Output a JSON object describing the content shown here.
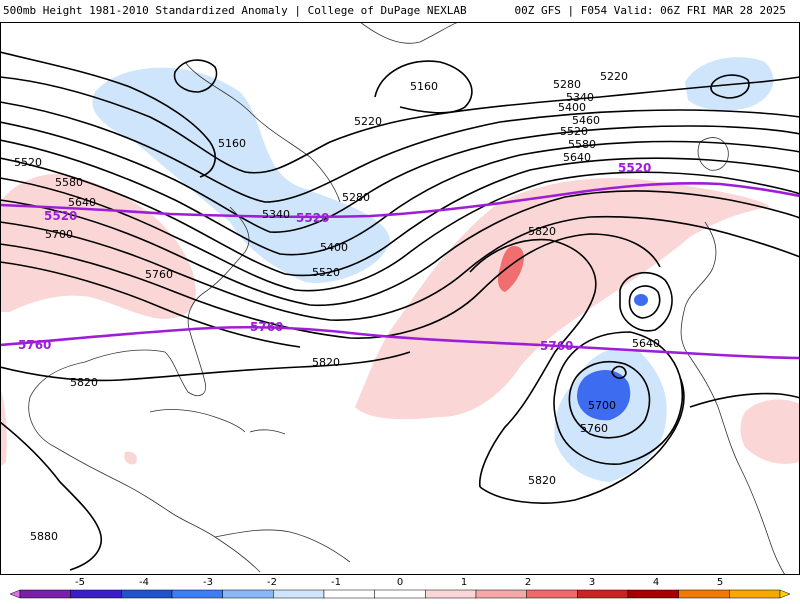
{
  "header": {
    "title_left": "500mb Height 1981-2010 Standardized Anomaly | College of DuPage NEXLAB",
    "title_right": "00Z GFS | F054 Valid: 06Z FRI MAR 28 2025"
  },
  "colors": {
    "contour": "#000000",
    "highlight_contour": "#9e1ed8",
    "coastline": "#333333",
    "anomaly_neg1": "#cfe5fb",
    "anomaly_neg2": "#3d6cf0",
    "anomaly_pos1": "#fbd6d6",
    "anomaly_pos2": "#f06e6e"
  },
  "contour_labels": [
    {
      "text": "5520"
    },
    {
      "text": "5580"
    },
    {
      "text": "5640"
    },
    {
      "text": "5700"
    },
    {
      "text": "5760"
    },
    {
      "text": "5820"
    },
    {
      "text": "5880"
    },
    {
      "text": "5160"
    },
    {
      "text": "5160"
    },
    {
      "text": "5220"
    },
    {
      "text": "5220"
    },
    {
      "text": "5280"
    },
    {
      "text": "5280"
    },
    {
      "text": "5340"
    },
    {
      "text": "5340"
    },
    {
      "text": "5400"
    },
    {
      "text": "5400"
    },
    {
      "text": "5460"
    },
    {
      "text": "5520"
    },
    {
      "text": "5520"
    },
    {
      "text": "5580"
    },
    {
      "text": "5640"
    },
    {
      "text": "5820"
    },
    {
      "text": "5640"
    },
    {
      "text": "5700"
    },
    {
      "text": "5760"
    },
    {
      "text": "5820"
    },
    {
      "text": "5820"
    }
  ],
  "highlight_labels": [
    {
      "text": "5520"
    },
    {
      "text": "5520"
    },
    {
      "text": "5520"
    },
    {
      "text": "5760"
    },
    {
      "text": "5760"
    },
    {
      "text": "5760"
    }
  ],
  "colorbar": {
    "ticks": [
      "-5",
      "-4",
      "-3",
      "-2",
      "-1",
      "0",
      "1",
      "2",
      "3",
      "4",
      "5"
    ],
    "colors": [
      "#7a1fa8",
      "#3a1fc8",
      "#1f55c8",
      "#3d7ff0",
      "#8ab8f5",
      "#cfe5fb",
      "#ffffff",
      "#ffffff",
      "#fbd6d6",
      "#f5a8a8",
      "#ee6b6b",
      "#cc2222",
      "#a80000",
      "#ee7a00",
      "#f7a800"
    ],
    "end_left": "#e070e8",
    "end_right": "#ffd000"
  }
}
